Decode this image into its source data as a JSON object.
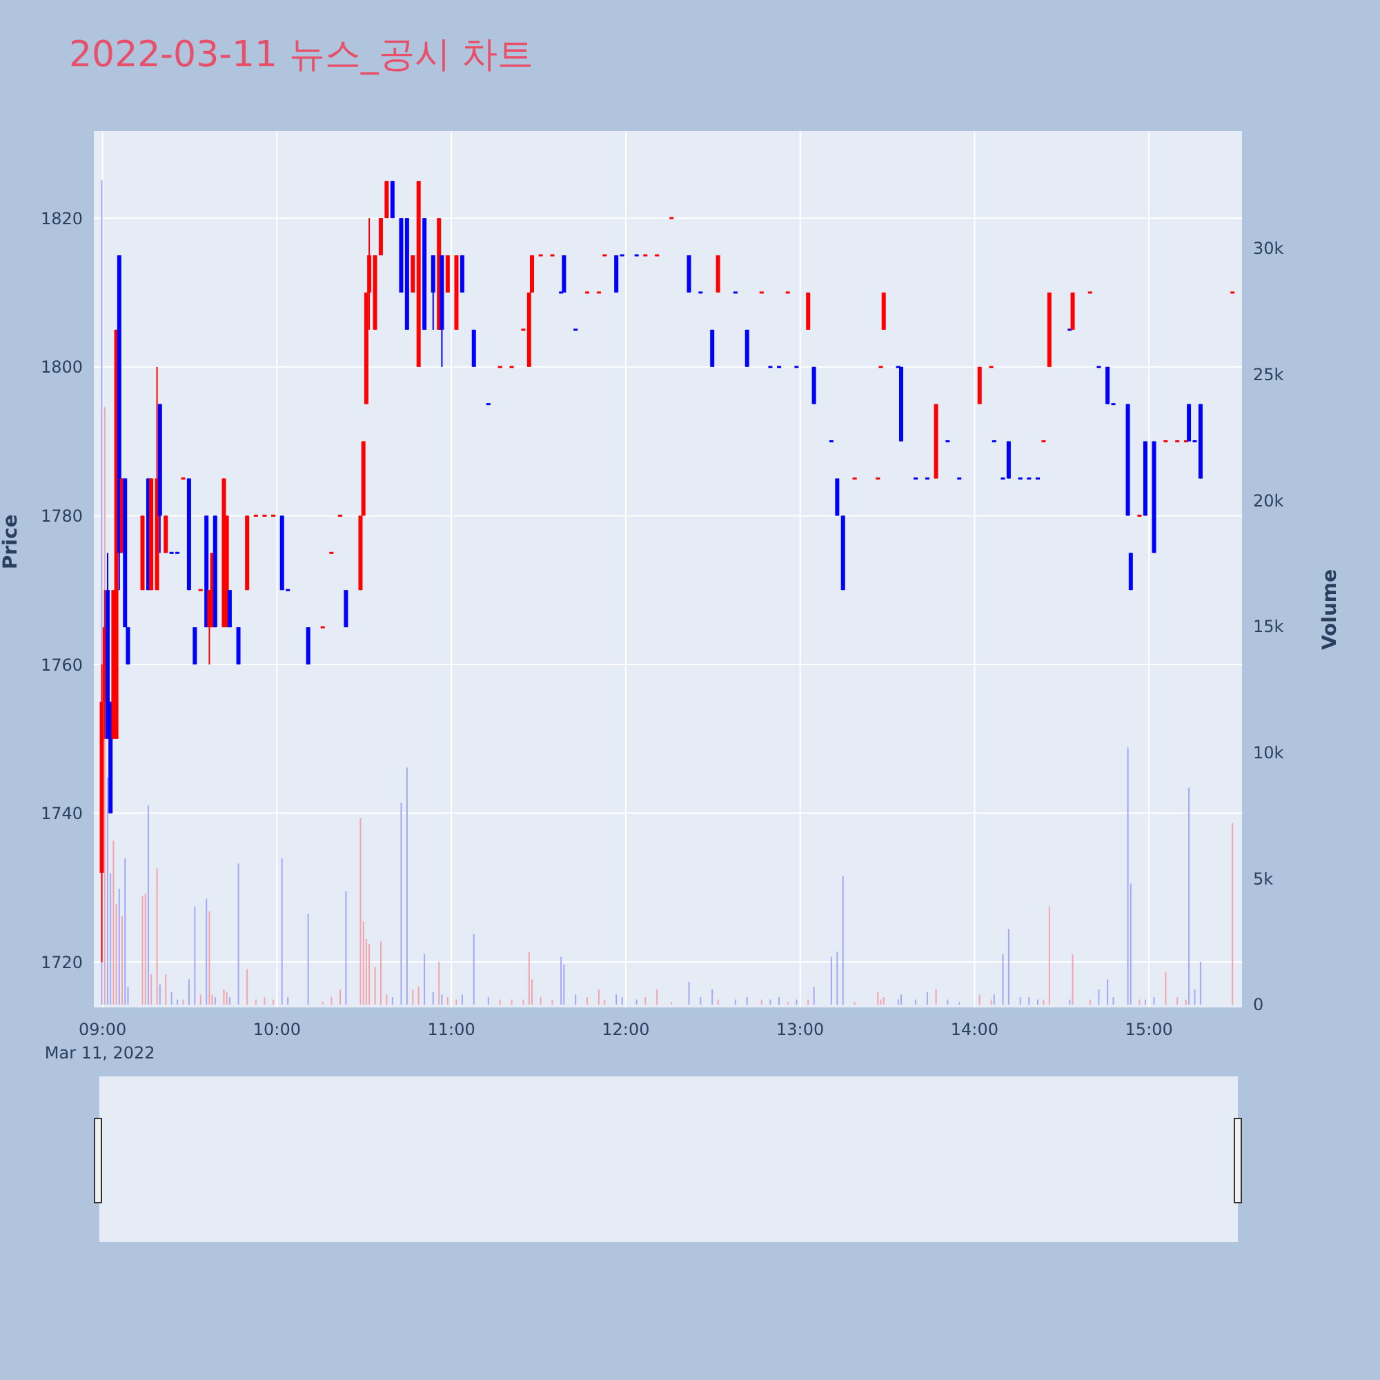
{
  "chart_data": {
    "type": "candlestick",
    "title": "2022-03-11 뉴스_공시 차트",
    "ylabel": "Price",
    "y2label": "Volume",
    "x": [
      "2022-03-11T09:00",
      "2022-03-11T09:01",
      "2022-03-11T09:02",
      "2022-03-11T09:03",
      "2022-03-11T09:04",
      "2022-03-11T09:05",
      "2022-03-11T09:06",
      "2022-03-11T09:07",
      "2022-03-11T09:08",
      "2022-03-11T09:09",
      "2022-03-11T09:14",
      "2022-03-11T09:15",
      "2022-03-11T09:16",
      "2022-03-11T09:17",
      "2022-03-11T09:19",
      "2022-03-11T09:20",
      "2022-03-11T09:22",
      "2022-03-11T09:24",
      "2022-03-11T09:26",
      "2022-03-11T09:28",
      "2022-03-11T09:30",
      "2022-03-11T09:32",
      "2022-03-11T09:34",
      "2022-03-11T09:36",
      "2022-03-11T09:37",
      "2022-03-11T09:38",
      "2022-03-11T09:39",
      "2022-03-11T09:42",
      "2022-03-11T09:43",
      "2022-03-11T09:44",
      "2022-03-11T09:47",
      "2022-03-11T09:50",
      "2022-03-11T09:53",
      "2022-03-11T09:56",
      "2022-03-11T09:59",
      "2022-03-11T10:02",
      "2022-03-11T10:04",
      "2022-03-11T10:11",
      "2022-03-11T10:16",
      "2022-03-11T10:19",
      "2022-03-11T10:22",
      "2022-03-11T10:24",
      "2022-03-11T10:29",
      "2022-03-11T10:30",
      "2022-03-11T10:31",
      "2022-03-11T10:32",
      "2022-03-11T10:34",
      "2022-03-11T10:36",
      "2022-03-11T10:38",
      "2022-03-11T10:40",
      "2022-03-11T10:43",
      "2022-03-11T10:45",
      "2022-03-11T10:47",
      "2022-03-11T10:49",
      "2022-03-11T10:51",
      "2022-03-11T10:54",
      "2022-03-11T10:56",
      "2022-03-11T10:57",
      "2022-03-11T10:59",
      "2022-03-11T11:02",
      "2022-03-11T11:04",
      "2022-03-11T11:08",
      "2022-03-11T11:13",
      "2022-03-11T11:17",
      "2022-03-11T11:21",
      "2022-03-11T11:25",
      "2022-03-11T11:27",
      "2022-03-11T11:28",
      "2022-03-11T11:31",
      "2022-03-11T11:35",
      "2022-03-11T11:38",
      "2022-03-11T11:39",
      "2022-03-11T11:43",
      "2022-03-11T11:47",
      "2022-03-11T11:51",
      "2022-03-11T11:53",
      "2022-03-11T11:57",
      "2022-03-11T11:59",
      "2022-03-11T12:04",
      "2022-03-11T12:07",
      "2022-03-11T12:11",
      "2022-03-11T12:16",
      "2022-03-11T12:22",
      "2022-03-11T12:26",
      "2022-03-11T12:30",
      "2022-03-11T12:32",
      "2022-03-11T12:38",
      "2022-03-11T12:42",
      "2022-03-11T12:47",
      "2022-03-11T12:50",
      "2022-03-11T12:53",
      "2022-03-11T12:56",
      "2022-03-11T12:59",
      "2022-03-11T13:03",
      "2022-03-11T13:05",
      "2022-03-11T13:11",
      "2022-03-11T13:13",
      "2022-03-11T13:15",
      "2022-03-11T13:19",
      "2022-03-11T13:27",
      "2022-03-11T13:28",
      "2022-03-11T13:29",
      "2022-03-11T13:34",
      "2022-03-11T13:35",
      "2022-03-11T13:40",
      "2022-03-11T13:44",
      "2022-03-11T13:47",
      "2022-03-11T13:51",
      "2022-03-11T13:55",
      "2022-03-11T14:02",
      "2022-03-11T14:06",
      "2022-03-11T14:07",
      "2022-03-11T14:10",
      "2022-03-11T14:12",
      "2022-03-11T14:16",
      "2022-03-11T14:19",
      "2022-03-11T14:22",
      "2022-03-11T14:24",
      "2022-03-11T14:26",
      "2022-03-11T14:33",
      "2022-03-11T14:34",
      "2022-03-11T14:40",
      "2022-03-11T14:43",
      "2022-03-11T14:46",
      "2022-03-11T14:48",
      "2022-03-11T14:53",
      "2022-03-11T14:54",
      "2022-03-11T14:57",
      "2022-03-11T14:59",
      "2022-03-11T15:02",
      "2022-03-11T15:06",
      "2022-03-11T15:10",
      "2022-03-11T15:13",
      "2022-03-11T15:14",
      "2022-03-11T15:16",
      "2022-03-11T15:18",
      "2022-03-11T15:29"
    ],
    "ohlc": [
      [
        1732,
        1760,
        1720,
        1755
      ],
      [
        1755,
        1770,
        1750,
        1765
      ],
      [
        1770,
        1775,
        1750,
        1750
      ],
      [
        1755,
        1755,
        1740,
        1740
      ],
      [
        1750,
        1770,
        1750,
        1770
      ],
      [
        1750,
        1805,
        1750,
        1805
      ],
      [
        1815,
        1815,
        1770,
        1775
      ],
      [
        1775,
        1785,
        1775,
        1785
      ],
      [
        1785,
        1785,
        1765,
        1765
      ],
      [
        1765,
        1765,
        1760,
        1760
      ],
      [
        1770,
        1780,
        1770,
        1780
      ],
      null,
      [
        1785,
        1785,
        1770,
        1770
      ],
      [
        1770,
        1785,
        1770,
        1785
      ],
      [
        1770,
        1800,
        1770,
        1785
      ],
      [
        1795,
        1795,
        1775,
        1780
      ],
      [
        1775,
        1780,
        1775,
        1780
      ],
      [
        1775,
        1775,
        1775,
        1775
      ],
      [
        1775,
        1775,
        1775,
        1775
      ],
      [
        1785,
        1785,
        1785,
        1785
      ],
      [
        1785,
        1785,
        1770,
        1770
      ],
      [
        1765,
        1765,
        1760,
        1760
      ],
      [
        1770,
        1770,
        1770,
        1770
      ],
      [
        1780,
        1780,
        1765,
        1765
      ],
      [
        1765,
        1770,
        1760,
        1770
      ],
      [
        1765,
        1775,
        1765,
        1775
      ],
      [
        1780,
        1780,
        1765,
        1765
      ],
      [
        1765,
        1785,
        1765,
        1785
      ],
      [
        1765,
        1780,
        1765,
        1780
      ],
      [
        1770,
        1770,
        1765,
        1765
      ],
      [
        1765,
        1765,
        1760,
        1760
      ],
      [
        1770,
        1780,
        1770,
        1780
      ],
      [
        1780,
        1780,
        1780,
        1780
      ],
      [
        1780,
        1780,
        1780,
        1780
      ],
      [
        1780,
        1780,
        1780,
        1780
      ],
      [
        1780,
        1780,
        1770,
        1770
      ],
      [
        1770,
        1770,
        1770,
        1770
      ],
      [
        1765,
        1765,
        1760,
        1760
      ],
      [
        1765,
        1765,
        1765,
        1765
      ],
      [
        1775,
        1775,
        1775,
        1775
      ],
      [
        1780,
        1780,
        1780,
        1780
      ],
      [
        1770,
        1770,
        1765,
        1765
      ],
      [
        1770,
        1780,
        1770,
        1780
      ],
      [
        1780,
        1790,
        1780,
        1790
      ],
      [
        1795,
        1810,
        1795,
        1810
      ],
      [
        1810,
        1820,
        1805,
        1815
      ],
      [
        1805,
        1815,
        1805,
        1815
      ],
      [
        1815,
        1820,
        1815,
        1820
      ],
      [
        1820,
        1825,
        1820,
        1825
      ],
      [
        1825,
        1825,
        1820,
        1820
      ],
      [
        1820,
        1820,
        1810,
        1810
      ],
      [
        1820,
        1820,
        1805,
        1805
      ],
      [
        1810,
        1815,
        1810,
        1815
      ],
      [
        1800,
        1825,
        1800,
        1825
      ],
      [
        1820,
        1820,
        1805,
        1805
      ],
      [
        1815,
        1815,
        1805,
        1810
      ],
      [
        1805,
        1820,
        1805,
        1820
      ],
      [
        1815,
        1815,
        1800,
        1805
      ],
      [
        1810,
        1815,
        1810,
        1815
      ],
      [
        1805,
        1815,
        1805,
        1815
      ],
      [
        1815,
        1815,
        1810,
        1810
      ],
      [
        1805,
        1805,
        1800,
        1800
      ],
      [
        1795,
        1795,
        1795,
        1795
      ],
      [
        1800,
        1800,
        1800,
        1800
      ],
      [
        1800,
        1800,
        1800,
        1800
      ],
      [
        1805,
        1805,
        1805,
        1805
      ],
      [
        1800,
        1810,
        1800,
        1810
      ],
      [
        1810,
        1815,
        1810,
        1815
      ],
      [
        1815,
        1815,
        1815,
        1815
      ],
      [
        1815,
        1815,
        1815,
        1815
      ],
      [
        1810,
        1810,
        1810,
        1810
      ],
      [
        1815,
        1815,
        1810,
        1810
      ],
      [
        1805,
        1805,
        1805,
        1805
      ],
      [
        1810,
        1810,
        1810,
        1810
      ],
      [
        1810,
        1810,
        1810,
        1810
      ],
      [
        1815,
        1815,
        1815,
        1815
      ],
      [
        1815,
        1815,
        1810,
        1810
      ],
      [
        1815,
        1815,
        1815,
        1815
      ],
      [
        1815,
        1815,
        1815,
        1815
      ],
      [
        1815,
        1815,
        1815,
        1815
      ],
      [
        1815,
        1815,
        1815,
        1815
      ],
      [
        1820,
        1820,
        1820,
        1820
      ],
      [
        1815,
        1815,
        1810,
        1810
      ],
      [
        1810,
        1810,
        1810,
        1810
      ],
      [
        1805,
        1805,
        1800,
        1800
      ],
      [
        1810,
        1815,
        1810,
        1815
      ],
      [
        1810,
        1810,
        1810,
        1810
      ],
      [
        1805,
        1805,
        1800,
        1800
      ],
      [
        1810,
        1810,
        1810,
        1810
      ],
      [
        1800,
        1800,
        1800,
        1800
      ],
      [
        1800,
        1800,
        1800,
        1800
      ],
      [
        1810,
        1810,
        1810,
        1810
      ],
      [
        1800,
        1800,
        1800,
        1800
      ],
      [
        1805,
        1810,
        1805,
        1810
      ],
      [
        1800,
        1800,
        1795,
        1795
      ],
      [
        1790,
        1790,
        1790,
        1790
      ],
      [
        1785,
        1785,
        1780,
        1780
      ],
      [
        1780,
        1780,
        1770,
        1770
      ],
      [
        1785,
        1785,
        1785,
        1785
      ],
      [
        1785,
        1785,
        1785,
        1785
      ],
      [
        1800,
        1800,
        1800,
        1800
      ],
      [
        1805,
        1810,
        1805,
        1810
      ],
      [
        1800,
        1800,
        1800,
        1800
      ],
      [
        1800,
        1800,
        1790,
        1790
      ],
      [
        1785,
        1785,
        1785,
        1785
      ],
      [
        1785,
        1785,
        1785,
        1785
      ],
      [
        1785,
        1795,
        1785,
        1795
      ],
      [
        1790,
        1790,
        1790,
        1790
      ],
      [
        1785,
        1785,
        1785,
        1785
      ],
      [
        1795,
        1800,
        1795,
        1800
      ],
      [
        1800,
        1800,
        1800,
        1800
      ],
      [
        1790,
        1790,
        1790,
        1790
      ],
      [
        1785,
        1785,
        1785,
        1785
      ],
      [
        1790,
        1790,
        1785,
        1785
      ],
      [
        1785,
        1785,
        1785,
        1785
      ],
      [
        1785,
        1785,
        1785,
        1785
      ],
      [
        1785,
        1785,
        1785,
        1785
      ],
      [
        1790,
        1790,
        1790,
        1790
      ],
      [
        1800,
        1810,
        1800,
        1810
      ],
      [
        1805,
        1805,
        1805,
        1805
      ],
      [
        1805,
        1810,
        1805,
        1810
      ],
      [
        1810,
        1810,
        1810,
        1810
      ],
      [
        1800,
        1800,
        1800,
        1800
      ],
      [
        1800,
        1800,
        1795,
        1795
      ],
      [
        1795,
        1795,
        1795,
        1795
      ],
      [
        1795,
        1795,
        1780,
        1780
      ],
      [
        1775,
        1775,
        1770,
        1770
      ],
      [
        1780,
        1780,
        1780,
        1780
      ],
      [
        1790,
        1790,
        1780,
        1780
      ],
      [
        1790,
        1790,
        1775,
        1775
      ],
      [
        1790,
        1790,
        1790,
        1790
      ],
      [
        1790,
        1790,
        1790,
        1790
      ],
      [
        1790,
        1790,
        1790,
        1790
      ],
      [
        1795,
        1795,
        1790,
        1790
      ],
      [
        1790,
        1790,
        1790,
        1790
      ],
      [
        1795,
        1795,
        1785,
        1785
      ],
      [
        1810,
        1810,
        1810,
        1810
      ]
    ],
    "colors": [
      "#ff0000",
      "#ff0000",
      "#0000ff",
      "#0000ff",
      "#ff0000",
      "#ff0000",
      "#0000ff",
      "#ff0000",
      "#0000ff",
      "#0000ff",
      "#ff0000",
      "#ff0000",
      "#0000ff",
      "#ff0000",
      "#ff0000",
      "#0000ff",
      "#ff0000",
      "#0000ff",
      "#0000ff",
      "#ff0000",
      "#0000ff",
      "#0000ff",
      "#ff0000",
      "#0000ff",
      "#ff0000",
      "#ff0000",
      "#0000ff",
      "#ff0000",
      "#ff0000",
      "#0000ff",
      "#0000ff",
      "#ff0000",
      "#ff0000",
      "#ff0000",
      "#ff0000",
      "#0000ff",
      "#0000ff",
      "#0000ff",
      "#ff0000",
      "#ff0000",
      "#ff0000",
      "#0000ff",
      "#ff0000",
      "#ff0000",
      "#ff0000",
      "#ff0000",
      "#ff0000",
      "#ff0000",
      "#ff0000",
      "#0000ff",
      "#0000ff",
      "#0000ff",
      "#ff0000",
      "#ff0000",
      "#0000ff",
      "#0000ff",
      "#ff0000",
      "#0000ff",
      "#ff0000",
      "#ff0000",
      "#0000ff",
      "#0000ff",
      "#0000ff",
      "#ff0000",
      "#ff0000",
      "#ff0000",
      "#ff0000",
      "#ff0000",
      "#ff0000",
      "#ff0000",
      "#0000ff",
      "#0000ff",
      "#0000ff",
      "#ff0000",
      "#ff0000",
      "#ff0000",
      "#0000ff",
      "#0000ff",
      "#0000ff",
      "#ff0000",
      "#ff0000",
      "#ff0000",
      "#0000ff",
      "#0000ff",
      "#0000ff",
      "#ff0000",
      "#0000ff",
      "#0000ff",
      "#ff0000",
      "#0000ff",
      "#0000ff",
      "#ff0000",
      "#0000ff",
      "#ff0000",
      "#0000ff",
      "#0000ff",
      "#0000ff",
      "#0000ff",
      "#ff0000",
      "#ff0000",
      "#ff0000",
      "#ff0000",
      "#0000ff",
      "#0000ff",
      "#0000ff",
      "#0000ff",
      "#ff0000",
      "#0000ff",
      "#0000ff",
      "#ff0000",
      "#ff0000",
      "#0000ff",
      "#0000ff",
      "#0000ff",
      "#0000ff",
      "#0000ff",
      "#0000ff",
      "#ff0000",
      "#ff0000",
      "#0000ff",
      "#ff0000",
      "#ff0000",
      "#0000ff",
      "#0000ff",
      "#0000ff",
      "#0000ff",
      "#0000ff",
      "#ff0000",
      "#0000ff",
      "#0000ff",
      "#ff0000",
      "#ff0000",
      "#ff0000",
      "#0000ff",
      "#0000ff",
      "#0000ff",
      "#ff0000"
    ],
    "series": [
      {
        "type": "bar",
        "axis": "y2",
        "values": [
          32700,
          23700,
          9000,
          5200,
          6500,
          4000,
          4600,
          3500,
          5800,
          700,
          4300,
          4400,
          7900,
          1200,
          5400,
          800,
          1200,
          500,
          200,
          200,
          1000,
          3900,
          400,
          4200,
          3700,
          400,
          300,
          600,
          500,
          300,
          5600,
          1400,
          200,
          300,
          200,
          5800,
          300,
          3600,
          100,
          300,
          600,
          4500,
          7400,
          3300,
          2600,
          2400,
          1500,
          2500,
          400,
          300,
          8000,
          9400,
          600,
          700,
          2000,
          500,
          1700,
          400,
          300,
          200,
          400,
          2800,
          300,
          200,
          200,
          200,
          2100,
          1000,
          300,
          200,
          1900,
          1600,
          400,
          300,
          600,
          200,
          400,
          300,
          200,
          300,
          600,
          100,
          900,
          300,
          600,
          200,
          200,
          300,
          200,
          200,
          300,
          100,
          200,
          200,
          700,
          1900,
          2100,
          5100,
          100,
          500,
          200,
          300,
          200,
          400,
          200,
          500,
          600,
          200,
          100,
          400,
          200,
          400,
          2000,
          3000,
          300,
          300,
          200,
          200,
          3900,
          200,
          2000,
          200,
          600,
          1000,
          300,
          10200,
          4800,
          200,
          200,
          300,
          1300,
          300,
          200,
          8600,
          600,
          1700,
          7200
        ],
        "colors": [
          "#a3a8f4",
          "#f4a3ab",
          "#a3a8f4",
          "#a3a8f4",
          "#f4a3ab",
          "#f4a3ab",
          "#a3a8f4",
          "#f4a3ab",
          "#a3a8f4",
          "#a3a8f4",
          "#f4a3ab",
          "#f4a3ab",
          "#a3a8f4",
          "#f4a3ab",
          "#f4a3ab",
          "#a3a8f4",
          "#f4a3ab",
          "#a3a8f4",
          "#a3a8f4",
          "#f4a3ab",
          "#a3a8f4",
          "#a3a8f4",
          "#f4a3ab",
          "#a3a8f4",
          "#f4a3ab",
          "#f4a3ab",
          "#a3a8f4",
          "#f4a3ab",
          "#f4a3ab",
          "#a3a8f4",
          "#a3a8f4",
          "#f4a3ab",
          "#f4a3ab",
          "#f4a3ab",
          "#f4a3ab",
          "#a3a8f4",
          "#a3a8f4",
          "#a3a8f4",
          "#f4a3ab",
          "#f4a3ab",
          "#f4a3ab",
          "#a3a8f4",
          "#f4a3ab",
          "#f4a3ab",
          "#f4a3ab",
          "#f4a3ab",
          "#f4a3ab",
          "#f4a3ab",
          "#f4a3ab",
          "#a3a8f4",
          "#a3a8f4",
          "#a3a8f4",
          "#f4a3ab",
          "#f4a3ab",
          "#a3a8f4",
          "#a3a8f4",
          "#f4a3ab",
          "#a3a8f4",
          "#f4a3ab",
          "#f4a3ab",
          "#a3a8f4",
          "#a3a8f4",
          "#a3a8f4",
          "#f4a3ab",
          "#f4a3ab",
          "#f4a3ab",
          "#f4a3ab",
          "#f4a3ab",
          "#f4a3ab",
          "#f4a3ab",
          "#a3a8f4",
          "#a3a8f4",
          "#a3a8f4",
          "#f4a3ab",
          "#f4a3ab",
          "#f4a3ab",
          "#a3a8f4",
          "#a3a8f4",
          "#a3a8f4",
          "#f4a3ab",
          "#f4a3ab",
          "#f4a3ab",
          "#a3a8f4",
          "#a3a8f4",
          "#a3a8f4",
          "#f4a3ab",
          "#a3a8f4",
          "#a3a8f4",
          "#f4a3ab",
          "#a3a8f4",
          "#a3a8f4",
          "#f4a3ab",
          "#a3a8f4",
          "#f4a3ab",
          "#a3a8f4",
          "#a3a8f4",
          "#a3a8f4",
          "#a3a8f4",
          "#f4a3ab",
          "#f4a3ab",
          "#f4a3ab",
          "#f4a3ab",
          "#a3a8f4",
          "#a3a8f4",
          "#a3a8f4",
          "#a3a8f4",
          "#f4a3ab",
          "#a3a8f4",
          "#a3a8f4",
          "#f4a3ab",
          "#f4a3ab",
          "#a3a8f4",
          "#a3a8f4",
          "#a3a8f4",
          "#a3a8f4",
          "#a3a8f4",
          "#a3a8f4",
          "#f4a3ab",
          "#f4a3ab",
          "#a3a8f4",
          "#f4a3ab",
          "#f4a3ab",
          "#a3a8f4",
          "#a3a8f4",
          "#a3a8f4",
          "#a3a8f4",
          "#a3a8f4",
          "#f4a3ab",
          "#a3a8f4",
          "#a3a8f4",
          "#f4a3ab",
          "#f4a3ab",
          "#f4a3ab",
          "#a3a8f4",
          "#a3a8f4",
          "#a3a8f4",
          "#f4a3ab"
        ]
      }
    ],
    "xlim": [
      "2022-03-11T08:57",
      "2022-03-11T15:32"
    ],
    "xticks": [
      {
        "value": "2022-03-11T09:00",
        "label": "09:00\nMar 11, 2022"
      },
      {
        "value": "2022-03-11T10:00",
        "label": "10:00"
      },
      {
        "value": "2022-03-11T11:00",
        "label": "11:00"
      },
      {
        "value": "2022-03-11T12:00",
        "label": "12:00"
      },
      {
        "value": "2022-03-11T13:00",
        "label": "13:00"
      },
      {
        "value": "2022-03-11T14:00",
        "label": "14:00"
      },
      {
        "value": "2022-03-11T15:00",
        "label": "15:00"
      }
    ],
    "ylim": [
      1713.9,
      1831.7
    ],
    "yticks": [
      1720,
      1740,
      1760,
      1780,
      1800,
      1820
    ],
    "y2lim": [
      -110,
      34640
    ],
    "y2ticks": [
      0,
      {
        "value": 5000,
        "label": "5k"
      },
      {
        "value": 10000,
        "label": "10k"
      },
      {
        "value": 15000,
        "label": "15k"
      },
      {
        "value": 20000,
        "label": "20k"
      },
      {
        "value": 25000,
        "label": "25k"
      },
      {
        "value": 30000,
        "label": "30k"
      }
    ],
    "grid": true
  }
}
